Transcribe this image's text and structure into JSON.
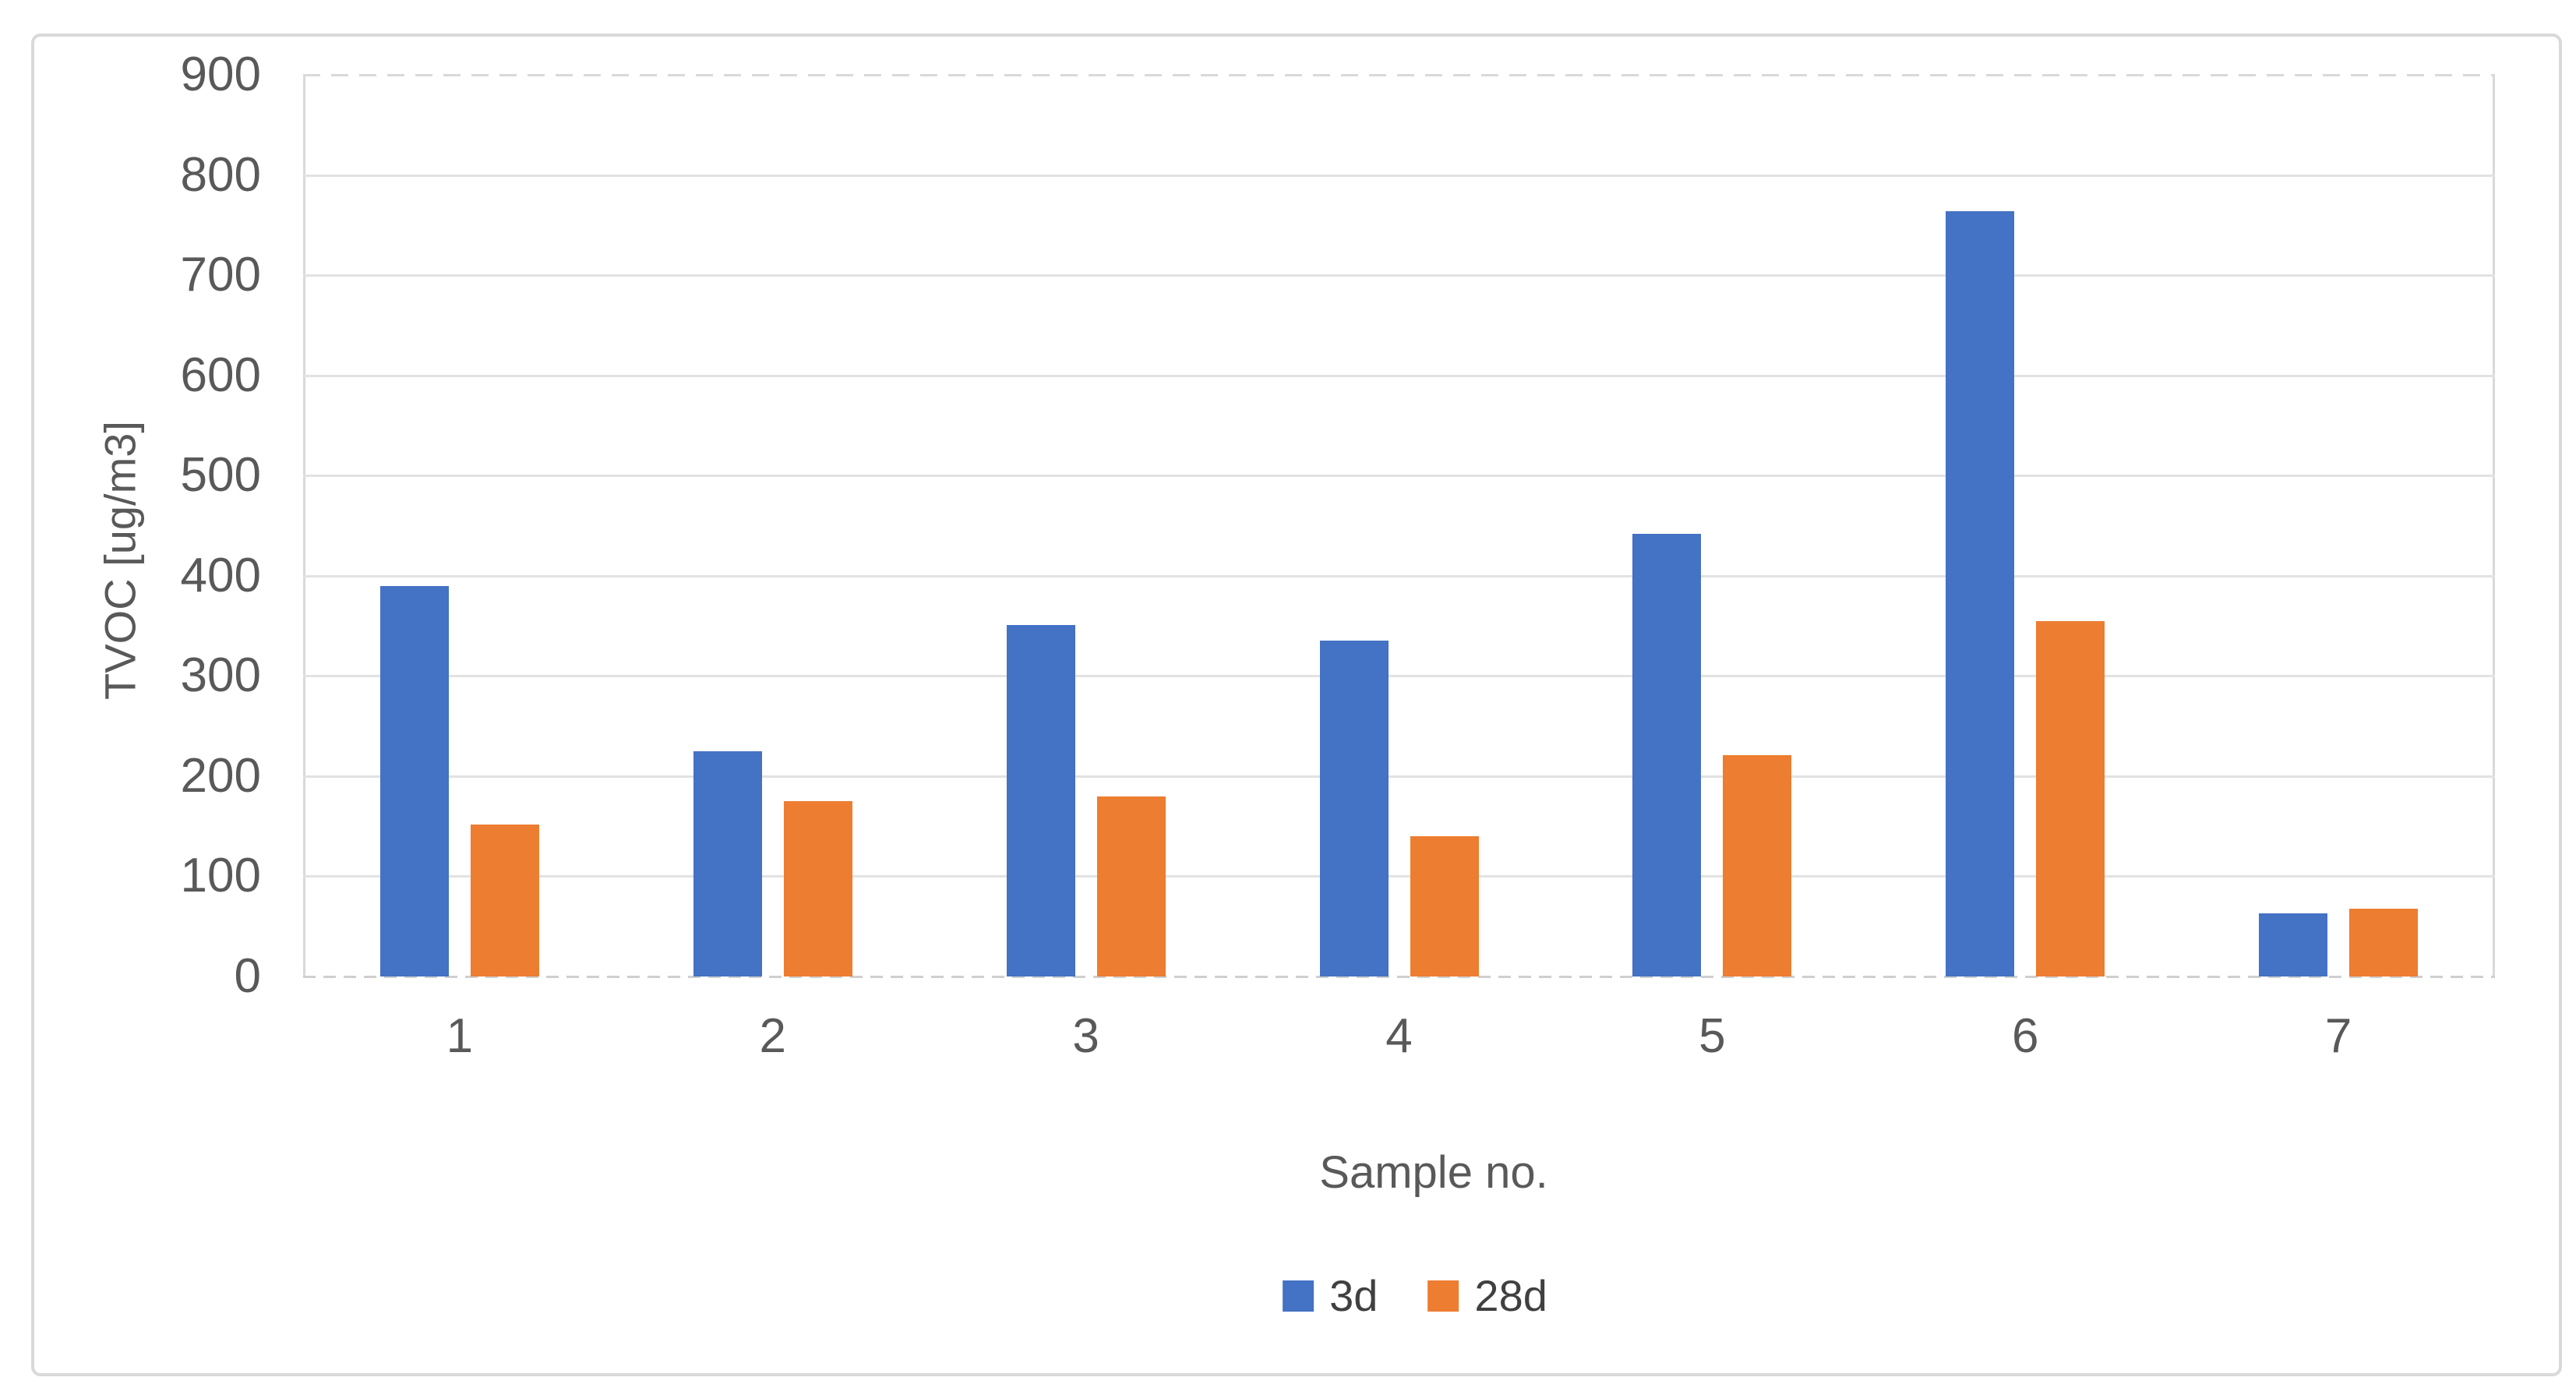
{
  "chart_data": {
    "type": "bar",
    "title": "",
    "xlabel": "Sample no.",
    "ylabel": "TVOC [ug/m3]",
    "categories": [
      "1",
      "2",
      "3",
      "4",
      "5",
      "6",
      "7"
    ],
    "series": [
      {
        "name": "3d",
        "color": "#4472C4",
        "values": [
          390,
          225,
          351,
          335,
          442,
          764,
          63
        ]
      },
      {
        "name": "28d",
        "color": "#ED7D31",
        "values": [
          152,
          175,
          180,
          140,
          221,
          355,
          68
        ]
      }
    ],
    "ylim": [
      0,
      900
    ],
    "ytick_step": 100,
    "yticks": [
      0,
      100,
      200,
      300,
      400,
      500,
      600,
      700,
      800,
      900
    ],
    "grid": true,
    "legend_position": "bottom"
  },
  "colors": {
    "gridline": "#E2E2E2",
    "axis_line": "#D9D9D9",
    "tick_text": "#595959",
    "legend_text": "#404040",
    "figure_border": "#D9D9D9",
    "background": "#FFFFFF"
  }
}
